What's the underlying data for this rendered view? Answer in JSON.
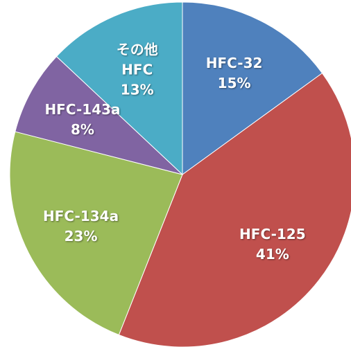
{
  "chart_data": {
    "type": "pie",
    "categories": [
      "HFC-32",
      "HFC-125",
      "HFC-134a",
      "HFC-143a",
      "その他\nHFC"
    ],
    "values": [
      15,
      41,
      23,
      8,
      13
    ],
    "value_labels": [
      "15%",
      "41%",
      "23%",
      "8%",
      "13%"
    ],
    "colors": [
      "#4f81bd",
      "#c0504d",
      "#9bbb59",
      "#8064a2",
      "#4bacc6"
    ]
  }
}
